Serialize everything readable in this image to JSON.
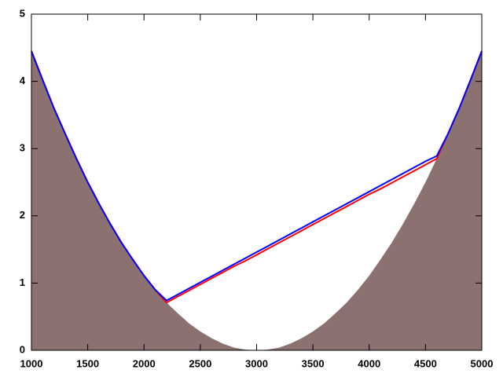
{
  "chart_data": {
    "type": "line",
    "x": [
      1000,
      1100,
      1200,
      1300,
      1400,
      1500,
      1600,
      1700,
      1800,
      1900,
      2000,
      2100,
      2200,
      2300,
      2400,
      2500,
      2600,
      2700,
      2800,
      2900,
      3000,
      3100,
      3200,
      3300,
      3400,
      3500,
      3600,
      3700,
      3800,
      3900,
      4000,
      4100,
      4200,
      4300,
      4400,
      4500,
      4600,
      4700,
      4800,
      4900,
      5000
    ],
    "series": [
      {
        "color": "#8b716f",
        "fill": true,
        "values": [
          4.45,
          4.02,
          3.6,
          3.22,
          2.85,
          2.5,
          2.18,
          1.88,
          1.6,
          1.35,
          1.11,
          0.9,
          0.71,
          0.55,
          0.4,
          0.28,
          0.18,
          0.1,
          0.04,
          0.01,
          0,
          0.01,
          0.04,
          0.1,
          0.18,
          0.28,
          0.4,
          0.55,
          0.71,
          0.9,
          1.11,
          1.35,
          1.6,
          1.88,
          2.18,
          2.5,
          2.85,
          3.22,
          3.6,
          4.02,
          4.45
        ]
      },
      {
        "color": "#ff0000",
        "fill": false,
        "values": [
          4.45,
          4.02,
          3.6,
          3.22,
          2.85,
          2.5,
          2.18,
          1.88,
          1.6,
          1.35,
          1.11,
          0.9,
          0.71,
          0.8,
          0.89,
          0.98,
          1.07,
          1.16,
          1.25,
          1.33,
          1.42,
          1.51,
          1.6,
          1.69,
          1.78,
          1.87,
          1.96,
          2.05,
          2.14,
          2.23,
          2.32,
          2.4,
          2.49,
          2.58,
          2.67,
          2.76,
          2.85,
          3.22,
          3.6,
          4.02,
          4.45
        ]
      },
      {
        "color": "#0000ff",
        "fill": false,
        "values": [
          4.45,
          4.02,
          3.6,
          3.22,
          2.85,
          2.5,
          2.18,
          1.88,
          1.6,
          1.35,
          1.11,
          0.9,
          0.74,
          0.83,
          0.92,
          1.01,
          1.1,
          1.19,
          1.28,
          1.37,
          1.46,
          1.55,
          1.64,
          1.73,
          1.82,
          1.91,
          2.0,
          2.09,
          2.18,
          2.27,
          2.36,
          2.45,
          2.54,
          2.63,
          2.72,
          2.81,
          2.89,
          3.22,
          3.6,
          4.02,
          4.45
        ]
      }
    ],
    "xlim": [
      1000,
      5000
    ],
    "xticks": [
      1000,
      1500,
      2000,
      2500,
      3000,
      3500,
      4000,
      4500,
      5000
    ],
    "ylim": [
      0,
      5
    ],
    "yticks": [
      0,
      1,
      2,
      3,
      4,
      5
    ]
  }
}
